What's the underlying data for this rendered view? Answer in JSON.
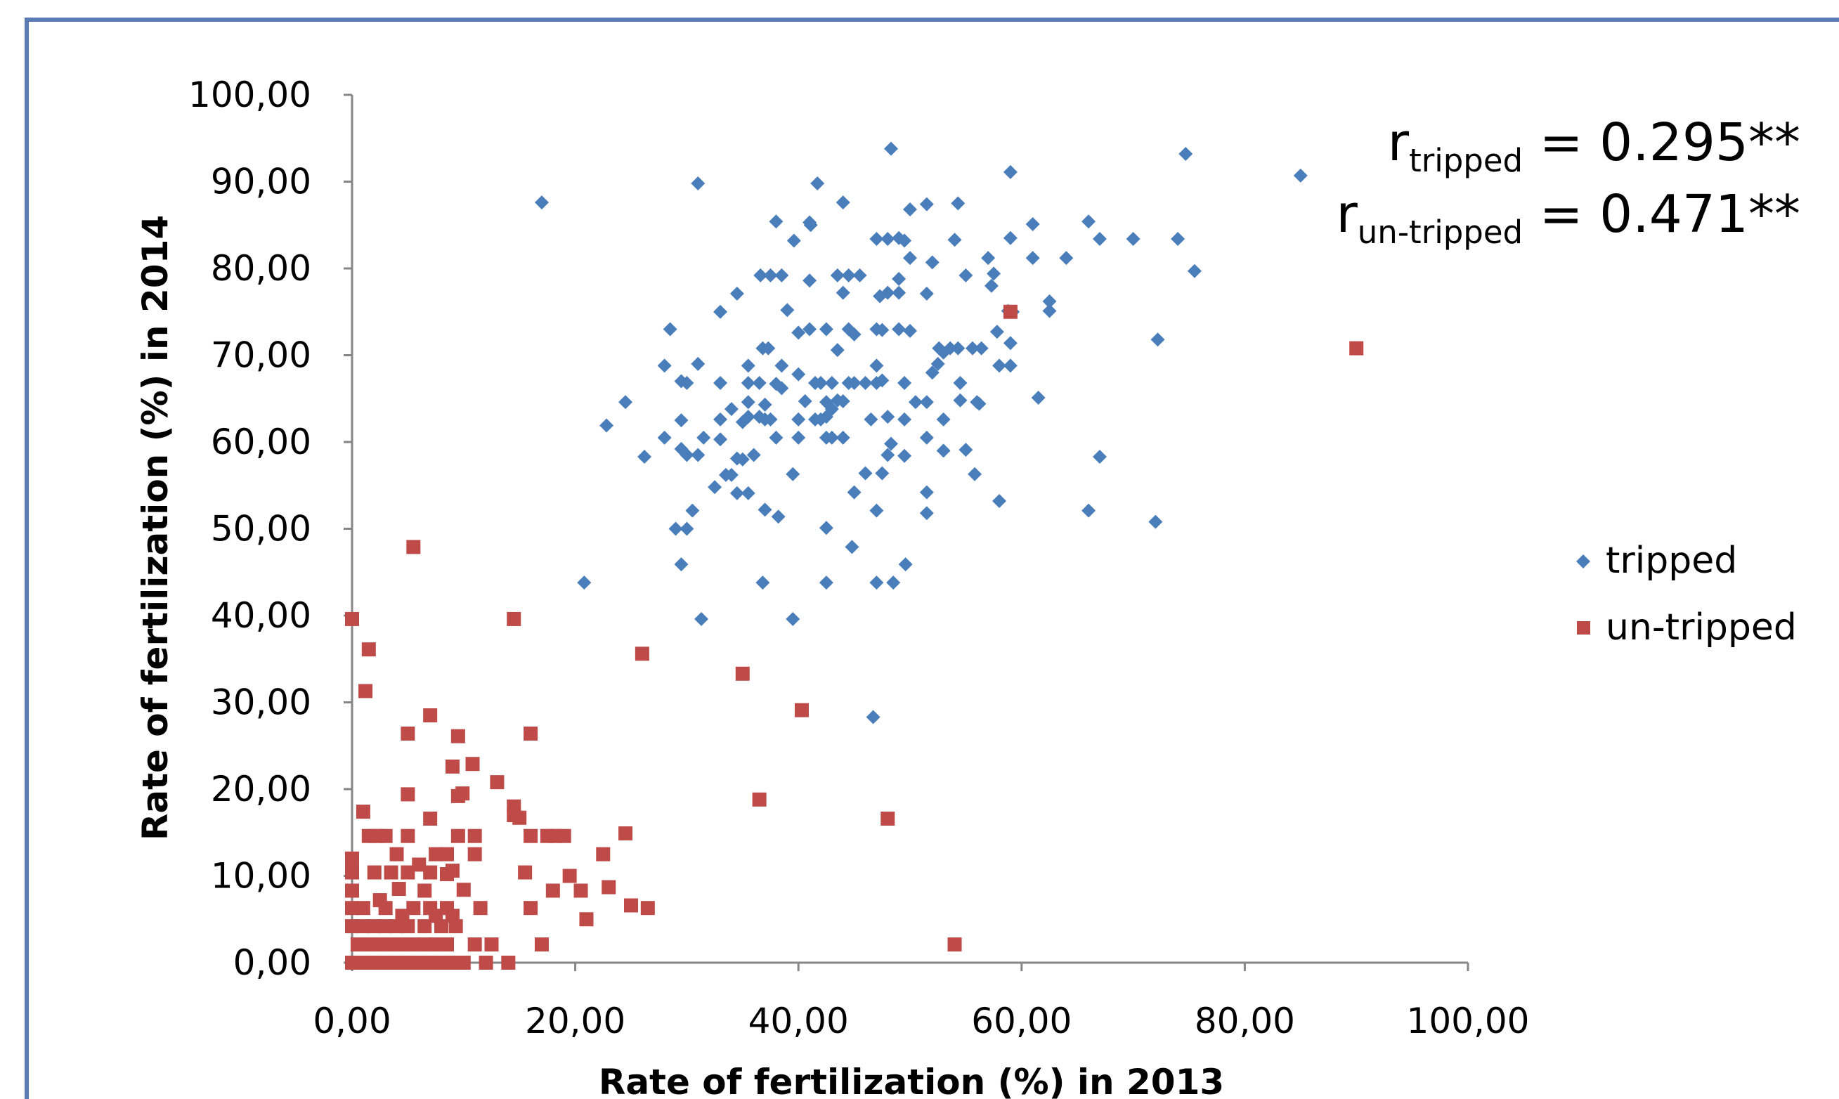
{
  "colors": {
    "frame": "#5b7bb4",
    "axis": "#868686",
    "tripped": "#4a7ebb",
    "untripped": "#be4b48"
  },
  "icons": {
    "tripped": "diamond-marker-icon",
    "untripped": "square-marker-icon"
  },
  "chart_data": {
    "type": "scatter",
    "title": "",
    "xlabel": "Rate of fertilization (%) in 2013",
    "ylabel": "Rate of fertilization (%) in 2014",
    "xlim": [
      0,
      100
    ],
    "ylim": [
      0,
      100
    ],
    "x_ticks": [
      "0,00",
      "20,00",
      "40,00",
      "60,00",
      "80,00",
      "100,00"
    ],
    "y_ticks": [
      "0,00",
      "10,00",
      "20,00",
      "30,00",
      "40,00",
      "50,00",
      "60,00",
      "70,00",
      "80,00",
      "90,00",
      "100,00"
    ],
    "grid": false,
    "legend": {
      "position": "right",
      "entries": [
        "tripped",
        "un-tripped"
      ]
    },
    "annotations": [
      {
        "prefix": "r",
        "subscript": "tripped",
        "suffix": " = 0.295**"
      },
      {
        "prefix": "r",
        "subscript": "un-tripped",
        "suffix": " = 0.471**"
      }
    ],
    "series": [
      {
        "name": "tripped",
        "marker": "diamond",
        "points": [
          [
            17.0,
            87.6
          ],
          [
            31.0,
            89.8
          ],
          [
            41.7,
            89.8
          ],
          [
            44.0,
            87.6
          ],
          [
            48.3,
            93.8
          ],
          [
            54.3,
            87.5
          ],
          [
            59.0,
            91.1
          ],
          [
            74.7,
            93.2
          ],
          [
            85.0,
            90.7
          ],
          [
            50.0,
            86.8
          ],
          [
            51.5,
            87.4
          ],
          [
            38.0,
            85.4
          ],
          [
            41.0,
            85.3
          ],
          [
            41.1,
            85.0
          ],
          [
            61.0,
            85.1
          ],
          [
            66.0,
            85.4
          ],
          [
            47.0,
            83.4
          ],
          [
            48.0,
            83.4
          ],
          [
            49.0,
            83.5
          ],
          [
            49.5,
            83.2
          ],
          [
            54.0,
            83.3
          ],
          [
            59.0,
            83.5
          ],
          [
            67.0,
            83.4
          ],
          [
            70.0,
            83.4
          ],
          [
            74.0,
            83.4
          ],
          [
            39.6,
            83.2
          ],
          [
            36.6,
            79.2
          ],
          [
            37.5,
            79.2
          ],
          [
            38.5,
            79.2
          ],
          [
            41.0,
            78.6
          ],
          [
            43.5,
            79.2
          ],
          [
            44.5,
            79.2
          ],
          [
            45.5,
            79.2
          ],
          [
            49.0,
            78.8
          ],
          [
            50.0,
            81.2
          ],
          [
            52.0,
            80.7
          ],
          [
            55.0,
            79.2
          ],
          [
            57.0,
            81.2
          ],
          [
            57.5,
            79.4
          ],
          [
            57.3,
            78.0
          ],
          [
            61.0,
            81.2
          ],
          [
            64.0,
            81.2
          ],
          [
            75.5,
            79.7
          ],
          [
            62.5,
            76.2
          ],
          [
            62.5,
            75.1
          ],
          [
            59.2,
            75.0
          ],
          [
            58.8,
            75.1
          ],
          [
            34.5,
            77.1
          ],
          [
            44.0,
            77.2
          ],
          [
            47.3,
            76.8
          ],
          [
            48.0,
            77.2
          ],
          [
            49.0,
            77.2
          ],
          [
            51.5,
            77.1
          ],
          [
            33.0,
            75.0
          ],
          [
            39.0,
            75.2
          ],
          [
            28.5,
            73.0
          ],
          [
            40.0,
            72.6
          ],
          [
            41.0,
            73.0
          ],
          [
            42.5,
            73.0
          ],
          [
            44.5,
            73.0
          ],
          [
            45.0,
            72.4
          ],
          [
            47.0,
            73.0
          ],
          [
            47.5,
            72.9
          ],
          [
            49.0,
            73.0
          ],
          [
            50.0,
            72.8
          ],
          [
            57.8,
            72.7
          ],
          [
            59.0,
            71.4
          ],
          [
            72.2,
            71.8
          ],
          [
            36.8,
            70.8
          ],
          [
            37.3,
            70.8
          ],
          [
            43.5,
            70.6
          ],
          [
            52.6,
            70.8
          ],
          [
            53.0,
            70.3
          ],
          [
            53.6,
            70.8
          ],
          [
            54.3,
            70.8
          ],
          [
            55.6,
            70.8
          ],
          [
            56.4,
            70.8
          ],
          [
            28.0,
            68.8
          ],
          [
            31.0,
            69.0
          ],
          [
            35.5,
            68.8
          ],
          [
            38.5,
            68.8
          ],
          [
            47.0,
            68.8
          ],
          [
            52.5,
            69.0
          ],
          [
            58.0,
            68.8
          ],
          [
            59.0,
            68.8
          ],
          [
            29.5,
            67.0
          ],
          [
            30.0,
            66.8
          ],
          [
            33.0,
            66.8
          ],
          [
            35.5,
            66.8
          ],
          [
            36.5,
            66.8
          ],
          [
            38.0,
            66.7
          ],
          [
            38.5,
            66.2
          ],
          [
            40.0,
            67.8
          ],
          [
            41.5,
            66.8
          ],
          [
            42.0,
            66.8
          ],
          [
            43.0,
            66.8
          ],
          [
            44.5,
            66.8
          ],
          [
            45.0,
            66.8
          ],
          [
            46.0,
            66.8
          ],
          [
            47.0,
            66.8
          ],
          [
            47.5,
            67.1
          ],
          [
            49.5,
            66.8
          ],
          [
            54.5,
            66.8
          ],
          [
            52.0,
            68.0
          ],
          [
            24.5,
            64.6
          ],
          [
            34.0,
            63.8
          ],
          [
            35.5,
            64.6
          ],
          [
            37.0,
            64.3
          ],
          [
            40.6,
            64.7
          ],
          [
            42.5,
            64.6
          ],
          [
            43.5,
            64.8
          ],
          [
            44.0,
            64.7
          ],
          [
            50.5,
            64.6
          ],
          [
            51.5,
            64.6
          ],
          [
            54.5,
            64.8
          ],
          [
            56.0,
            64.6
          ],
          [
            56.2,
            64.4
          ],
          [
            61.5,
            65.1
          ],
          [
            22.8,
            61.9
          ],
          [
            29.5,
            62.5
          ],
          [
            33.0,
            62.6
          ],
          [
            35.0,
            62.3
          ],
          [
            35.5,
            62.9
          ],
          [
            36.5,
            62.9
          ],
          [
            37.0,
            62.6
          ],
          [
            37.5,
            62.6
          ],
          [
            40.0,
            62.6
          ],
          [
            41.5,
            62.6
          ],
          [
            42.0,
            62.6
          ],
          [
            42.5,
            62.9
          ],
          [
            43.0,
            63.8
          ],
          [
            46.5,
            62.6
          ],
          [
            48.0,
            62.9
          ],
          [
            49.5,
            62.6
          ],
          [
            53.0,
            62.6
          ],
          [
            28.0,
            60.5
          ],
          [
            31.5,
            60.5
          ],
          [
            33.0,
            60.3
          ],
          [
            38.0,
            60.5
          ],
          [
            40.0,
            60.5
          ],
          [
            42.5,
            60.5
          ],
          [
            43.0,
            60.5
          ],
          [
            44.0,
            60.5
          ],
          [
            48.3,
            59.8
          ],
          [
            51.5,
            60.5
          ],
          [
            29.5,
            59.2
          ],
          [
            30.0,
            58.5
          ],
          [
            31.0,
            58.5
          ],
          [
            34.5,
            58.1
          ],
          [
            35.0,
            58.0
          ],
          [
            26.2,
            58.3
          ],
          [
            36.0,
            58.5
          ],
          [
            48.0,
            58.5
          ],
          [
            49.5,
            58.4
          ],
          [
            53.0,
            59.0
          ],
          [
            55.0,
            59.1
          ],
          [
            67.0,
            58.3
          ],
          [
            33.5,
            56.2
          ],
          [
            34.0,
            56.2
          ],
          [
            39.5,
            56.3
          ],
          [
            46.0,
            56.4
          ],
          [
            47.5,
            56.4
          ],
          [
            55.8,
            56.3
          ],
          [
            32.5,
            54.8
          ],
          [
            34.5,
            54.1
          ],
          [
            35.5,
            54.1
          ],
          [
            45.0,
            54.2
          ],
          [
            51.5,
            54.2
          ],
          [
            30.5,
            52.1
          ],
          [
            37.0,
            52.2
          ],
          [
            38.2,
            51.4
          ],
          [
            47.0,
            52.1
          ],
          [
            51.5,
            51.8
          ],
          [
            58.0,
            53.2
          ],
          [
            66.0,
            52.1
          ],
          [
            72.0,
            50.8
          ],
          [
            29.0,
            50.0
          ],
          [
            30.0,
            50.0
          ],
          [
            42.5,
            50.1
          ],
          [
            44.8,
            47.9
          ],
          [
            29.5,
            45.9
          ],
          [
            49.6,
            45.9
          ],
          [
            20.8,
            43.8
          ],
          [
            36.8,
            43.8
          ],
          [
            42.5,
            43.8
          ],
          [
            47.0,
            43.8
          ],
          [
            48.5,
            43.8
          ],
          [
            31.3,
            39.6
          ],
          [
            39.5,
            39.6
          ],
          [
            46.7,
            28.3
          ]
        ]
      },
      {
        "name": "un-tripped",
        "marker": "square",
        "points": [
          [
            5.5,
            47.9
          ],
          [
            0.0,
            39.6
          ],
          [
            14.5,
            39.6
          ],
          [
            1.5,
            36.1
          ],
          [
            26.0,
            35.6
          ],
          [
            35.0,
            33.3
          ],
          [
            1.2,
            31.3
          ],
          [
            40.3,
            29.1
          ],
          [
            7.0,
            28.5
          ],
          [
            5.0,
            26.4
          ],
          [
            9.5,
            26.1
          ],
          [
            16.0,
            26.4
          ],
          [
            10.8,
            22.9
          ],
          [
            9.0,
            22.6
          ],
          [
            13.0,
            20.8
          ],
          [
            5.0,
            19.4
          ],
          [
            9.5,
            19.2
          ],
          [
            9.9,
            19.5
          ],
          [
            36.5,
            18.8
          ],
          [
            14.5,
            18.0
          ],
          [
            14.5,
            17.0
          ],
          [
            15.0,
            16.7
          ],
          [
            1.0,
            17.4
          ],
          [
            7.0,
            16.6
          ],
          [
            48.0,
            16.6
          ],
          [
            1.5,
            14.6
          ],
          [
            2.2,
            14.6
          ],
          [
            3.0,
            14.6
          ],
          [
            5.0,
            14.6
          ],
          [
            9.5,
            14.6
          ],
          [
            11.0,
            14.6
          ],
          [
            16.0,
            14.6
          ],
          [
            17.5,
            14.6
          ],
          [
            18.2,
            14.6
          ],
          [
            19.0,
            14.6
          ],
          [
            24.5,
            14.9
          ],
          [
            4.0,
            12.5
          ],
          [
            7.5,
            12.5
          ],
          [
            8.5,
            12.5
          ],
          [
            11.0,
            12.5
          ],
          [
            22.5,
            12.5
          ],
          [
            0.0,
            12.0
          ],
          [
            6.0,
            11.3
          ],
          [
            7.0,
            10.4
          ],
          [
            8.5,
            10.2
          ],
          [
            9.0,
            10.6
          ],
          [
            2.0,
            10.4
          ],
          [
            3.5,
            10.4
          ],
          [
            5.0,
            10.4
          ],
          [
            15.5,
            10.4
          ],
          [
            19.5,
            10.0
          ],
          [
            0.0,
            10.4
          ],
          [
            4.2,
            8.5
          ],
          [
            6.5,
            8.3
          ],
          [
            10.0,
            8.4
          ],
          [
            18.0,
            8.3
          ],
          [
            20.5,
            8.3
          ],
          [
            23.0,
            8.7
          ],
          [
            0.0,
            8.3
          ],
          [
            2.5,
            7.2
          ],
          [
            3.0,
            6.3
          ],
          [
            5.5,
            6.3
          ],
          [
            7.0,
            6.3
          ],
          [
            8.5,
            6.3
          ],
          [
            11.5,
            6.3
          ],
          [
            16.0,
            6.3
          ],
          [
            25.0,
            6.6
          ],
          [
            26.5,
            6.3
          ],
          [
            0.0,
            6.3
          ],
          [
            1.0,
            6.3
          ],
          [
            4.5,
            5.4
          ],
          [
            7.5,
            5.4
          ],
          [
            9.0,
            5.4
          ],
          [
            0.0,
            4.2
          ],
          [
            1.0,
            4.2
          ],
          [
            2.0,
            4.2
          ],
          [
            3.0,
            4.2
          ],
          [
            4.0,
            4.2
          ],
          [
            5.0,
            4.2
          ],
          [
            6.5,
            4.2
          ],
          [
            8.0,
            4.2
          ],
          [
            9.3,
            4.2
          ],
          [
            21.0,
            5.0
          ],
          [
            0.5,
            2.1
          ],
          [
            1.5,
            2.1
          ],
          [
            2.5,
            2.1
          ],
          [
            3.5,
            2.1
          ],
          [
            4.5,
            2.1
          ],
          [
            5.5,
            2.1
          ],
          [
            6.5,
            2.1
          ],
          [
            7.5,
            2.1
          ],
          [
            8.5,
            2.1
          ],
          [
            11.0,
            2.1
          ],
          [
            12.5,
            2.1
          ],
          [
            17.0,
            2.1
          ],
          [
            54.0,
            2.1
          ],
          [
            0.0,
            0.0
          ],
          [
            1.0,
            0.0
          ],
          [
            2.0,
            0.0
          ],
          [
            3.0,
            0.0
          ],
          [
            4.0,
            0.0
          ],
          [
            5.0,
            0.0
          ],
          [
            6.0,
            0.0
          ],
          [
            7.0,
            0.0
          ],
          [
            8.0,
            0.0
          ],
          [
            9.0,
            0.0
          ],
          [
            10.0,
            0.0
          ],
          [
            12.0,
            0.0
          ],
          [
            14.0,
            0.0
          ],
          [
            59.0,
            75.0
          ],
          [
            90.0,
            70.8
          ]
        ]
      }
    ]
  }
}
